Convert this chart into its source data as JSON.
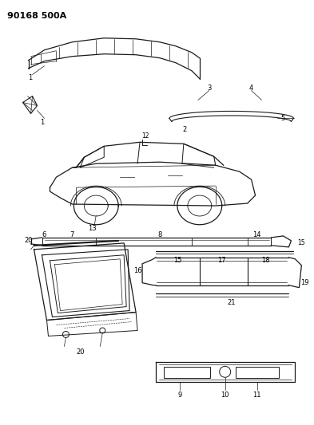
{
  "title": "90168 500A",
  "bg_color": "#ffffff",
  "line_color": "#1a1a1a",
  "fig_width": 3.93,
  "fig_height": 5.33,
  "dpi": 100
}
